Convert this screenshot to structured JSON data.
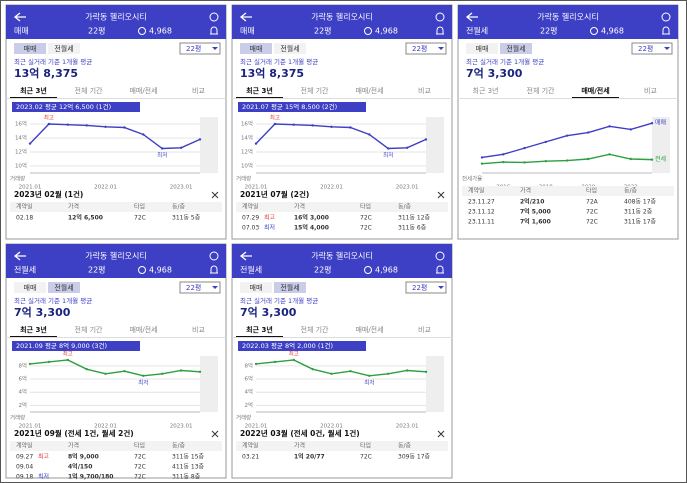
{
  "panels": [
    {
      "title": "가락동 헬리오시티",
      "deal_type": "매매",
      "size": "22평",
      "count": "4,968",
      "tabs": [
        "매매",
        "전월세"
      ],
      "active_tab": 0,
      "size_select": "22평",
      "avg_label": "최근 실거래 기준 1개월 평균",
      "avg_price": "13억 8,375",
      "period_tabs": [
        "최근 3년",
        "전체 기간",
        "매매/전세",
        "비교"
      ],
      "active_period": 0,
      "tooltip": "2023.02 평균 12억 6,500 (1건)",
      "chart": {
        "categories": [
          "2021.01",
          null,
          null,
          null,
          "2022.01",
          null,
          null,
          null,
          "2023.01",
          null
        ],
        "series": [
          {
            "color": "#3d3fc4",
            "values": [
              13.2,
              16,
              15.9,
              15.8,
              15.6,
              15.5,
              14.5,
              12.5,
              12.6,
              13.8
            ]
          }
        ],
        "ylim": [
          9,
          17
        ],
        "yticks": [
          {
            "value": 10,
            "label": "10억"
          },
          {
            "value": 12,
            "label": "12억"
          },
          {
            "value": 14,
            "label": "14억"
          },
          {
            "value": 16,
            "label": "16억"
          }
        ],
        "high_label": "최고",
        "low_label": "최저",
        "volume_label": "거래량"
      },
      "detail_title": "2023년 02월 (1건)",
      "table": {
        "headers": [
          "계약일",
          "가격",
          "타입",
          "동/층"
        ],
        "rows": [
          {
            "date": "02.18",
            "price": "12억 6,500",
            "type": "72C",
            "unit": "311동 5층"
          }
        ]
      }
    },
    {
      "title": "가락동 헬리오시티",
      "deal_type": "매매",
      "size": "22평",
      "count": "4,968",
      "tabs": [
        "매매",
        "전월세"
      ],
      "active_tab": 0,
      "size_select": "22평",
      "avg_label": "최근 실거래 기준 1개월 평균",
      "avg_price": "13억 8,375",
      "period_tabs": [
        "최근 3년",
        "전체 기간",
        "매매/전세",
        "비교"
      ],
      "active_period": 0,
      "tooltip": "2021.07 평균 15억 8,500 (2건)",
      "chart": {
        "categories": [
          "2021.01",
          null,
          null,
          null,
          "2022.01",
          null,
          null,
          null,
          "2023.01",
          null
        ],
        "series": [
          {
            "color": "#3d3fc4",
            "values": [
              13.2,
              16,
              15.9,
              15.8,
              15.6,
              15.5,
              14.5,
              12.5,
              12.6,
              13.8
            ]
          }
        ],
        "ylim": [
          9,
          17
        ],
        "yticks": [
          {
            "value": 10,
            "label": "10억"
          },
          {
            "value": 12,
            "label": "12억"
          },
          {
            "value": 14,
            "label": "14억"
          },
          {
            "value": 16,
            "label": "16억"
          }
        ],
        "high_label": "최고",
        "low_label": "최저",
        "volume_label": "거래량"
      },
      "detail_title": "2021년 07월 (2건)",
      "table": {
        "headers": [
          "계약일",
          "가격",
          "타입",
          "동/층"
        ],
        "rows": [
          {
            "date": "07.29",
            "tag": "최고",
            "price": "16억 3,000",
            "type": "72C",
            "unit": "311동 12층"
          },
          {
            "date": "07.03",
            "tag": "최저",
            "price": "15억 4,000",
            "type": "72C",
            "unit": "311동 6층"
          }
        ]
      }
    },
    {
      "title": "가락동 헬리오시티",
      "deal_type": "전월세",
      "size": "22평",
      "count": "4,968",
      "tabs": [
        "매매",
        "전월세"
      ],
      "active_tab": 1,
      "size_select": "22평",
      "avg_label": "최근 실거래 기준 1개월 평균",
      "avg_price": "7억 3,300",
      "period_tabs": [
        "최근 3년",
        "전체 기간",
        "매매/전세",
        "비교"
      ],
      "active_period": 2,
      "chart": {
        "categories": [
          null,
          "2016",
          null,
          "2018",
          null,
          "2020",
          null,
          "2022",
          null
        ],
        "series": [
          {
            "name": "매매",
            "color": "#3d3fc4",
            "values": [
              8,
              9,
              11,
              13,
              15,
              16,
              18,
              17,
              19
            ]
          },
          {
            "name": "전세",
            "color": "#2e9e3e",
            "values": [
              6,
              6.5,
              6.4,
              6.8,
              7,
              7.5,
              9,
              7.5,
              7.3
            ]
          }
        ],
        "ylim": [
          3,
          21
        ],
        "volume_label": "전세가율"
      },
      "table": {
        "headers": [
          "계약일",
          "가격",
          "타입",
          "동/층"
        ],
        "rows": [
          {
            "date": "23.11.27",
            "price": "2억/210",
            "type": "72A",
            "unit": "408동 17층"
          },
          {
            "date": "23.11.12",
            "price": "7억 5,000",
            "type": "72C",
            "unit": "311동 2층"
          },
          {
            "date": "23.11.11",
            "price": "7억 1,600",
            "type": "72C",
            "unit": "311동 17층"
          }
        ]
      }
    },
    {
      "title": "가락동 헬리오시티",
      "deal_type": "전월세",
      "size": "22평",
      "count": "4,968",
      "tabs": [
        "매매",
        "전월세"
      ],
      "active_tab": 1,
      "size_select": "22평",
      "avg_label": "최근 실거래 기준 1개월 평균",
      "avg_price": "7억 3,300",
      "period_tabs": [
        "최근 3년",
        "전체 기간",
        "매매/전세",
        "비교"
      ],
      "active_period": 0,
      "tooltip": "2021.09 평균 8억 9,000 (3건)",
      "chart": {
        "categories": [
          "2021.01",
          null,
          null,
          null,
          "2022.01",
          null,
          null,
          null,
          "2023.01",
          null
        ],
        "series": [
          {
            "color": "#2e9e3e",
            "values": [
              8.3,
              8.6,
              8.9,
              7.5,
              6.8,
              7.2,
              6.5,
              6.8,
              7.3,
              7.1
            ]
          }
        ],
        "ylim": [
          1,
          9.5
        ],
        "yticks": [
          {
            "value": 2,
            "label": "2억"
          },
          {
            "value": 4,
            "label": "4억"
          },
          {
            "value": 6,
            "label": "6억"
          },
          {
            "value": 8,
            "label": "8억"
          }
        ],
        "high_label": "최고",
        "low_label": "최저",
        "volume_label": "거래량"
      },
      "detail_title": "2021년 09월 (전세 1건, 월세 2건)",
      "table": {
        "headers": [
          "계약일",
          "가격",
          "타입",
          "동/층"
        ],
        "rows": [
          {
            "date": "09.27",
            "tag": "최고",
            "price": "8억 9,000",
            "type": "72C",
            "unit": "311동 15층"
          },
          {
            "date": "09.04",
            "price": "4억/150",
            "type": "72C",
            "unit": "411동 13층"
          },
          {
            "date": "09.18",
            "tag": "최저",
            "price": "1억 9,700/180",
            "type": "72C",
            "unit": "311동 8층"
          }
        ]
      }
    },
    {
      "title": "가락동 헬리오시티",
      "deal_type": "전월세",
      "size": "22평",
      "count": "4,968",
      "tabs": [
        "매매",
        "전월세"
      ],
      "active_tab": 1,
      "size_select": "22평",
      "avg_label": "최근 실거래 기준 1개월 평균",
      "avg_price": "7억 3,300",
      "period_tabs": [
        "최근 3년",
        "전체 기간",
        "매매/전세",
        "비교"
      ],
      "active_period": 0,
      "tooltip": "2022.03 평균 8억 2,000 (1건)",
      "chart": {
        "categories": [
          "2021.01",
          null,
          null,
          null,
          "2022.01",
          null,
          null,
          null,
          "2023.01",
          null
        ],
        "series": [
          {
            "color": "#2e9e3e",
            "values": [
              8.3,
              8.6,
              8.9,
              7.5,
              6.8,
              7.2,
              6.5,
              6.8,
              7.3,
              7.1
            ]
          }
        ],
        "ylim": [
          1,
          9.5
        ],
        "yticks": [
          {
            "value": 2,
            "label": "2억"
          },
          {
            "value": 4,
            "label": "4억"
          },
          {
            "value": 6,
            "label": "6억"
          },
          {
            "value": 8,
            "label": "8억"
          }
        ],
        "high_label": "최고",
        "low_label": "최저",
        "volume_label": "거래량"
      },
      "detail_title": "2022년 03월 (전세 0건, 월세 1건)",
      "table": {
        "headers": [
          "계약일",
          "가격",
          "타입",
          "동/층"
        ],
        "rows": [
          {
            "date": "03.21",
            "price": "1억 20/77",
            "type": "72C",
            "unit": "309동 17층"
          }
        ]
      }
    }
  ]
}
